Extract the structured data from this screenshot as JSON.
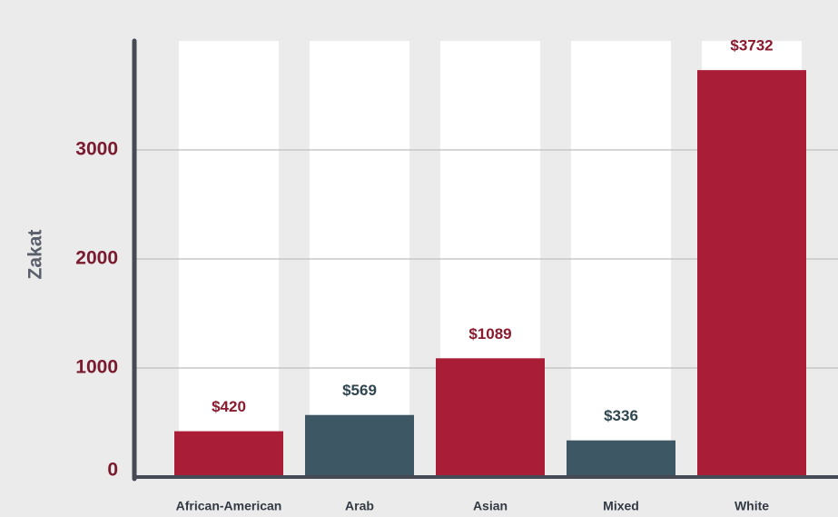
{
  "chart_data": {
    "type": "bar",
    "y_label": "Zakat",
    "categories": [
      "African-American",
      "Arab",
      "Asian",
      "Mixed",
      "White"
    ],
    "values": [
      420,
      569,
      1089,
      336,
      3732
    ],
    "value_labels": [
      "$420",
      "$569",
      "$1089",
      "$336",
      "$3732"
    ],
    "colors": [
      "#a91e36",
      "#3d5764",
      "#a91e36",
      "#3d5764",
      "#a91e36"
    ],
    "ylim": [
      0,
      4000
    ],
    "yticks": [
      0,
      1000,
      2000,
      3000
    ],
    "grid": true
  }
}
